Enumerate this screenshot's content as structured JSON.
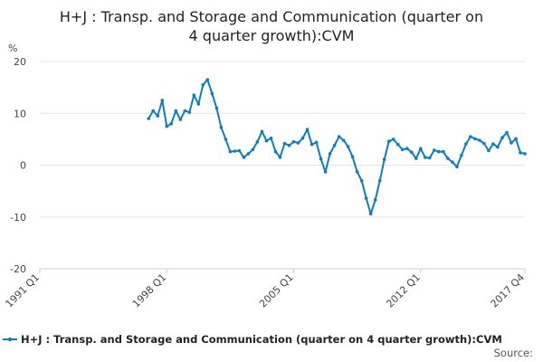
{
  "chart_data": {
    "type": "line",
    "title_line1": "H+J : Transp. and Storage and Communication (quarter on",
    "title_line2": "4 quarter growth):CVM",
    "unit_label": "%",
    "ylim": [
      -20,
      20
    ],
    "y_ticks": [
      20,
      10,
      0,
      -10,
      -20
    ],
    "grid": true,
    "x_ticks": [
      "1991 Q1",
      "1998 Q1",
      "2005 Q1",
      "2012 Q1",
      "2017 Q4"
    ],
    "x_start": "1991 Q1",
    "x_end": "2017 Q4",
    "legend_position": "bottom",
    "source_label": "Source:",
    "colors": {
      "series": "#0f7dbe",
      "grid": "#e6e6e6",
      "axis": "#cccccc"
    },
    "series": [
      {
        "name": "H+J : Transp. and Storage and Communication (quarter on 4 quarter growth):CVM",
        "start": "1997 Q1",
        "values": [
          9.0,
          10.5,
          9.5,
          12.5,
          7.5,
          8.0,
          10.5,
          8.8,
          10.5,
          10.2,
          13.5,
          11.8,
          15.5,
          16.5,
          13.8,
          11.0,
          7.3,
          5.0,
          2.6,
          2.7,
          2.8,
          1.5,
          2.2,
          3.0,
          4.5,
          6.5,
          4.7,
          5.2,
          2.6,
          1.5,
          4.2,
          3.8,
          4.5,
          4.3,
          5.2,
          6.9,
          4.0,
          4.4,
          1.2,
          -1.3,
          2.2,
          3.8,
          5.5,
          4.8,
          3.6,
          1.6,
          -1.3,
          -3.0,
          -6.4,
          -9.4,
          -6.7,
          -3.0,
          1.1,
          4.6,
          5.0,
          4.0,
          3.0,
          3.2,
          2.5,
          1.3,
          3.2,
          1.5,
          1.4,
          2.9,
          2.6,
          2.6,
          1.3,
          0.6,
          -0.3,
          1.9,
          4.1,
          5.5,
          5.1,
          4.8,
          4.2,
          2.8,
          4.1,
          3.5,
          5.3,
          6.3,
          4.3,
          5.1,
          2.4,
          2.2
        ]
      }
    ]
  }
}
